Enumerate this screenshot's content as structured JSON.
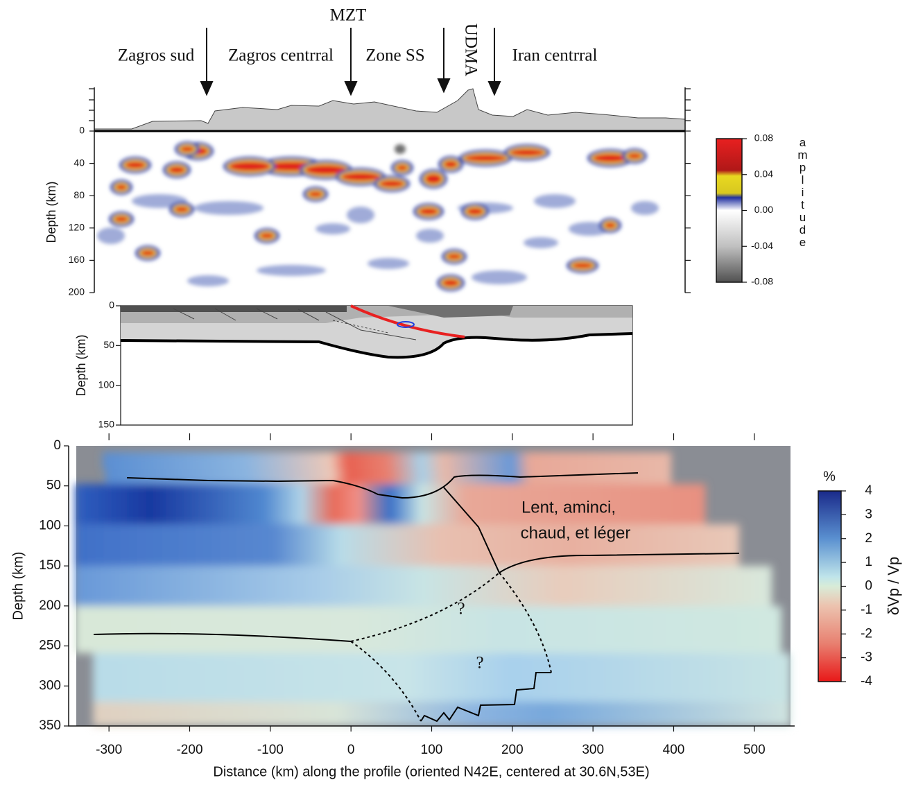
{
  "chart_data": [
    {
      "type": "receiver-function-image",
      "region_labels": [
        "Zagros sud",
        "Zagros centrral",
        "MZT",
        "Zone SS",
        "UDMA",
        "Iran centrral"
      ],
      "ylabel": "Depth (km)",
      "ylim": [
        0,
        200
      ],
      "yticks": [
        0,
        40,
        80,
        120,
        160,
        200
      ],
      "colorbar": {
        "label": "amplitude",
        "ticks": [
          0.08,
          0.04,
          {
            "value": 0,
            "label": "0.00"
          },
          -0.04,
          -0.08
        ]
      }
    },
    {
      "type": "cross-section",
      "ylabel": "Depth (km)",
      "ylim": [
        0,
        150
      ],
      "yticks": [
        0,
        50,
        100,
        150
      ]
    },
    {
      "type": "tomography",
      "xlabel": "Distance (km) along the profile (oriented N42E, centered at 30.6N,53E)",
      "ylabel": "Depth (km)",
      "xlim": [
        -350,
        550
      ],
      "xticks": [
        -300,
        -200,
        -100,
        0,
        100,
        200,
        300,
        400,
        500
      ],
      "ylim": [
        0,
        350
      ],
      "yticks": [
        0,
        50,
        100,
        150,
        200,
        250,
        300,
        350
      ],
      "annotations": [
        "Lent, aminci,",
        "chaud, et léger",
        "?",
        "?"
      ],
      "colorbar": {
        "title": "%",
        "label": "δVp / Vp",
        "ticks": [
          4,
          3,
          2,
          1,
          0,
          -1,
          -2,
          -3,
          -4
        ]
      }
    }
  ]
}
